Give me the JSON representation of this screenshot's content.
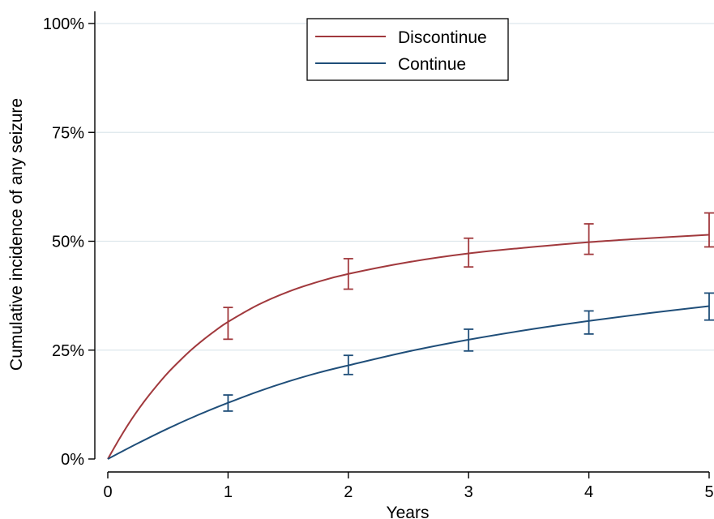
{
  "chart_data": {
    "type": "line",
    "xlabel": "Years",
    "ylabel": "Cumulative incidence of any seizure",
    "xlim": [
      0,
      5
    ],
    "ylim": [
      0,
      100
    ],
    "x_ticks": [
      0,
      1,
      2,
      3,
      4,
      5
    ],
    "x_tick_labels": [
      "0",
      "1",
      "2",
      "3",
      "4",
      "5"
    ],
    "y_ticks": [
      0,
      25,
      50,
      75,
      100
    ],
    "y_tick_labels": [
      "0%",
      "25%",
      "50%",
      "75%",
      "100%"
    ],
    "grid": "horizontal",
    "legend_position": "top-center",
    "series": [
      {
        "name": "Discontinue",
        "color": "#a1393d",
        "curve": {
          "x": [
            0,
            0.1,
            0.2,
            0.3,
            0.4,
            0.5,
            0.6,
            0.7,
            0.8,
            0.9,
            1.0,
            1.25,
            1.5,
            1.75,
            2.0,
            2.5,
            3.0,
            3.5,
            4.0,
            4.5,
            5.0
          ],
          "y": [
            0,
            4.8,
            9.2,
            13.1,
            16.6,
            19.8,
            22.6,
            25.2,
            27.5,
            29.6,
            31.5,
            35.4,
            38.4,
            40.7,
            42.5,
            45.2,
            47.2,
            48.6,
            49.8,
            50.7,
            51.5
          ]
        },
        "points": [
          {
            "x": 1,
            "y": 31.5,
            "lower": 27.5,
            "upper": 34.8
          },
          {
            "x": 2,
            "y": 42.5,
            "lower": 39.0,
            "upper": 46.0
          },
          {
            "x": 3,
            "y": 47.2,
            "lower": 44.1,
            "upper": 50.7
          },
          {
            "x": 4,
            "y": 49.8,
            "lower": 47.0,
            "upper": 54.0
          },
          {
            "x": 5,
            "y": 51.5,
            "lower": 48.7,
            "upper": 56.5
          }
        ]
      },
      {
        "name": "Continue",
        "color": "#1f4e79",
        "curve": {
          "x": [
            0,
            0.25,
            0.5,
            0.75,
            1.0,
            1.25,
            1.5,
            1.75,
            2.0,
            2.5,
            3.0,
            3.5,
            4.0,
            4.5,
            5.0
          ],
          "y": [
            0,
            3.6,
            7.0,
            10.1,
            12.9,
            15.5,
            17.8,
            19.8,
            21.5,
            24.7,
            27.4,
            29.7,
            31.7,
            33.5,
            35.1
          ]
        },
        "points": [
          {
            "x": 1,
            "y": 12.9,
            "lower": 11.0,
            "upper": 14.7
          },
          {
            "x": 2,
            "y": 21.5,
            "lower": 19.4,
            "upper": 23.8
          },
          {
            "x": 3,
            "y": 27.4,
            "lower": 24.8,
            "upper": 29.8
          },
          {
            "x": 4,
            "y": 31.7,
            "lower": 28.7,
            "upper": 34.0
          },
          {
            "x": 5,
            "y": 35.1,
            "lower": 31.9,
            "upper": 38.1
          }
        ]
      }
    ]
  }
}
